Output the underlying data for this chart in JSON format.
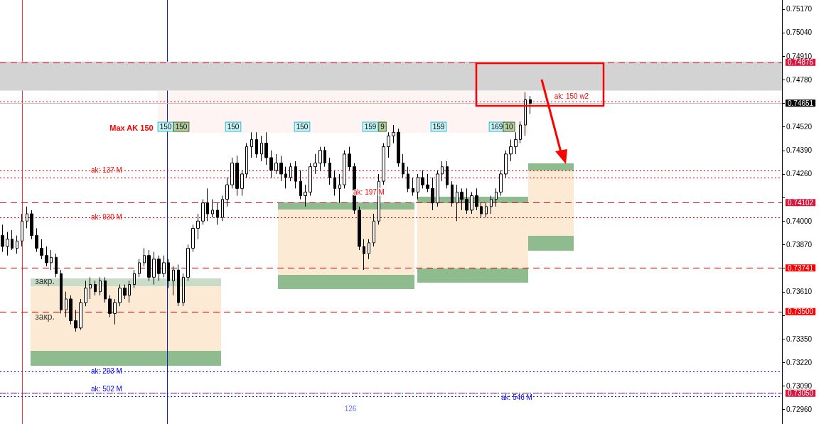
{
  "chart_data": {
    "type": "candlestick",
    "categories": [
      null,
      null,
      null,
      null,
      null,
      null,
      null,
      null,
      null,
      null,
      null,
      null,
      null,
      null,
      null,
      null,
      null,
      null,
      null,
      null,
      null,
      null,
      null,
      null,
      null,
      null,
      null,
      null,
      null,
      null,
      null,
      null,
      null,
      null,
      null,
      null,
      null,
      null,
      null,
      null,
      null,
      null,
      null,
      null,
      null,
      null,
      null,
      null,
      null,
      null,
      null,
      null,
      null,
      null,
      null,
      null,
      null,
      null,
      null,
      null,
      null,
      null,
      null,
      null,
      null,
      null,
      null,
      null,
      null,
      null,
      null,
      null,
      null,
      null,
      null,
      null,
      null,
      null,
      null,
      null,
      null,
      null,
      null,
      null,
      null,
      null,
      null,
      null,
      null,
      null,
      null,
      null,
      null,
      null,
      null,
      null,
      null,
      null,
      null,
      null,
      null,
      null,
      null,
      null,
      null,
      null,
      null,
      null,
      null,
      null,
      null,
      null,
      null,
      null,
      null,
      null,
      null,
      null,
      null,
      null,
      null,
      null,
      null,
      null,
      null,
      null,
      null,
      null,
      null,
      null,
      null,
      null,
      null,
      null,
      null,
      null,
      null,
      null,
      null,
      null,
      null,
      null,
      null,
      null,
      null,
      null,
      null,
      null,
      null,
      null,
      null,
      null,
      null,
      null,
      null,
      null,
      null,
      null,
      null,
      null
    ],
    "ohlc": [
      [
        0.7392,
        0.7398,
        0.7383,
        0.7386
      ],
      [
        0.7386,
        0.7394,
        0.7381,
        0.739
      ],
      [
        0.739,
        0.7395,
        0.7384,
        0.7385
      ],
      [
        0.7385,
        0.7392,
        0.7382,
        0.7389
      ],
      [
        0.7389,
        0.7404,
        0.7386,
        0.74
      ],
      [
        0.74,
        0.7408,
        0.7396,
        0.7404
      ],
      [
        0.7404,
        0.7406,
        0.739,
        0.7392
      ],
      [
        0.7392,
        0.7396,
        0.7383,
        0.7385
      ],
      [
        0.7385,
        0.739,
        0.7379,
        0.7381
      ],
      [
        0.7381,
        0.7386,
        0.7375,
        0.7377
      ],
      [
        0.7377,
        0.7384,
        0.7373,
        0.738
      ],
      [
        0.738,
        0.7382,
        0.7369,
        0.7371
      ],
      [
        0.7371,
        0.7373,
        0.7349,
        0.7351
      ],
      [
        0.7351,
        0.7361,
        0.7347,
        0.7357
      ],
      [
        0.7357,
        0.7359,
        0.7343,
        0.7345
      ],
      [
        0.7345,
        0.7351,
        0.7339,
        0.7341
      ],
      [
        0.7341,
        0.7357,
        0.734,
        0.7355
      ],
      [
        0.7355,
        0.7367,
        0.7353,
        0.7363
      ],
      [
        0.7363,
        0.7369,
        0.7357,
        0.7365
      ],
      [
        0.7365,
        0.7367,
        0.7359,
        0.7361
      ],
      [
        0.7361,
        0.7369,
        0.7359,
        0.7367
      ],
      [
        0.7367,
        0.7369,
        0.7355,
        0.7357
      ],
      [
        0.7357,
        0.7359,
        0.7347,
        0.7349
      ],
      [
        0.7349,
        0.7357,
        0.7343,
        0.7355
      ],
      [
        0.7355,
        0.7365,
        0.7353,
        0.7363
      ],
      [
        0.7363,
        0.7365,
        0.7357,
        0.7359
      ],
      [
        0.7359,
        0.7367,
        0.7355,
        0.7365
      ],
      [
        0.7365,
        0.7373,
        0.7363,
        0.7371
      ],
      [
        0.7371,
        0.7379,
        0.7369,
        0.7377
      ],
      [
        0.7377,
        0.7385,
        0.7375,
        0.7381
      ],
      [
        0.7381,
        0.7384,
        0.7367,
        0.7369
      ],
      [
        0.7369,
        0.7383,
        0.7365,
        0.7379
      ],
      [
        0.7379,
        0.7381,
        0.7367,
        0.7371
      ],
      [
        0.7371,
        0.7381,
        0.7369,
        0.7377
      ],
      [
        0.7377,
        0.7379,
        0.7363,
        0.7367
      ],
      [
        0.7367,
        0.7375,
        0.7359,
        0.7373
      ],
      [
        0.7373,
        0.7376,
        0.7353,
        0.7355
      ],
      [
        0.7355,
        0.7371,
        0.7353,
        0.7369
      ],
      [
        0.7369,
        0.7387,
        0.7367,
        0.7385
      ],
      [
        0.7385,
        0.7398,
        0.7383,
        0.7396
      ],
      [
        0.7396,
        0.7404,
        0.739,
        0.74
      ],
      [
        0.74,
        0.7412,
        0.7398,
        0.741
      ],
      [
        0.741,
        0.7418,
        0.74,
        0.7404
      ],
      [
        0.7404,
        0.7412,
        0.7402,
        0.7406
      ],
      [
        0.7406,
        0.741,
        0.7398,
        0.7402
      ],
      [
        0.7402,
        0.7414,
        0.74,
        0.7412
      ],
      [
        0.7412,
        0.7424,
        0.7408,
        0.742
      ],
      [
        0.742,
        0.7435,
        0.7418,
        0.7432
      ],
      [
        0.7432,
        0.7436,
        0.7414,
        0.7418
      ],
      [
        0.7418,
        0.7428,
        0.7414,
        0.7426
      ],
      [
        0.7426,
        0.7443,
        0.7424,
        0.7441
      ],
      [
        0.7441,
        0.7449,
        0.7435,
        0.7445
      ],
      [
        0.7445,
        0.7449,
        0.7435,
        0.7437
      ],
      [
        0.7437,
        0.7447,
        0.7433,
        0.7443
      ],
      [
        0.7443,
        0.7449,
        0.7431,
        0.7435
      ],
      [
        0.7435,
        0.7439,
        0.7424,
        0.7428
      ],
      [
        0.7428,
        0.7437,
        0.7426,
        0.7432
      ],
      [
        0.7432,
        0.7436,
        0.7422,
        0.7426
      ],
      [
        0.7426,
        0.743,
        0.7418,
        0.7424
      ],
      [
        0.7424,
        0.7432,
        0.7422,
        0.743
      ],
      [
        0.743,
        0.7433,
        0.7418,
        0.7422
      ],
      [
        0.7422,
        0.7428,
        0.7412,
        0.7414
      ],
      [
        0.7414,
        0.742,
        0.7408,
        0.7416
      ],
      [
        0.7416,
        0.7432,
        0.7414,
        0.743
      ],
      [
        0.743,
        0.7437,
        0.7426,
        0.7432
      ],
      [
        0.7432,
        0.7441,
        0.7428,
        0.7439
      ],
      [
        0.7439,
        0.7441,
        0.743,
        0.7432
      ],
      [
        0.7432,
        0.7435,
        0.742,
        0.7424
      ],
      [
        0.7424,
        0.7428,
        0.7414,
        0.7418
      ],
      [
        0.7418,
        0.7426,
        0.741,
        0.742
      ],
      [
        0.742,
        0.7439,
        0.7418,
        0.7437
      ],
      [
        0.7437,
        0.7441,
        0.7428,
        0.743
      ],
      [
        0.743,
        0.7432,
        0.7404,
        0.7406
      ],
      [
        0.7406,
        0.7408,
        0.7384,
        0.7386
      ],
      [
        0.7386,
        0.739,
        0.7373,
        0.7382
      ],
      [
        0.7382,
        0.739,
        0.7379,
        0.7388
      ],
      [
        0.7388,
        0.7404,
        0.7386,
        0.74
      ],
      [
        0.74,
        0.7426,
        0.7398,
        0.7422
      ],
      [
        0.7422,
        0.7443,
        0.742,
        0.7441
      ],
      [
        0.7441,
        0.7449,
        0.7435,
        0.7447
      ],
      [
        0.7447,
        0.7453,
        0.7443,
        0.7449
      ],
      [
        0.7449,
        0.7451,
        0.743,
        0.7432
      ],
      [
        0.7432,
        0.7437,
        0.7424,
        0.7426
      ],
      [
        0.7426,
        0.743,
        0.7416,
        0.7418
      ],
      [
        0.7418,
        0.7424,
        0.7414,
        0.7416
      ],
      [
        0.7416,
        0.7426,
        0.7412,
        0.7424
      ],
      [
        0.7424,
        0.7428,
        0.7418,
        0.742
      ],
      [
        0.742,
        0.7426,
        0.7416,
        0.7418
      ],
      [
        0.7418,
        0.7424,
        0.7406,
        0.741
      ],
      [
        0.741,
        0.7428,
        0.7408,
        0.7426
      ],
      [
        0.7426,
        0.7433,
        0.7422,
        0.743
      ],
      [
        0.743,
        0.7433,
        0.7418,
        0.742
      ],
      [
        0.742,
        0.7422,
        0.7408,
        0.741
      ],
      [
        0.741,
        0.742,
        0.74,
        0.7416
      ],
      [
        0.7416,
        0.7418,
        0.7406,
        0.7412
      ],
      [
        0.7412,
        0.7418,
        0.7404,
        0.7406
      ],
      [
        0.7406,
        0.7416,
        0.7404,
        0.7414
      ],
      [
        0.7414,
        0.7418,
        0.7406,
        0.7408
      ],
      [
        0.7408,
        0.741,
        0.7402,
        0.7404
      ],
      [
        0.7404,
        0.741,
        0.7402,
        0.7408
      ],
      [
        0.7408,
        0.7414,
        0.7404,
        0.7412
      ],
      [
        0.7412,
        0.7418,
        0.7408,
        0.7416
      ],
      [
        0.7416,
        0.7428,
        0.7414,
        0.7426
      ],
      [
        0.7426,
        0.7439,
        0.7424,
        0.7437
      ],
      [
        0.7437,
        0.7445,
        0.7433,
        0.7441
      ],
      [
        0.7441,
        0.7449,
        0.7437,
        0.7445
      ],
      [
        0.7445,
        0.7455,
        0.7443,
        0.7453
      ],
      [
        0.7453,
        0.7471,
        0.7447,
        0.7467
      ],
      [
        0.7467,
        0.7469,
        0.7459,
        0.7465
      ],
      null,
      null,
      null,
      null,
      null,
      null,
      null,
      null,
      null,
      null,
      null,
      null,
      null,
      null,
      null,
      null,
      null,
      null,
      null,
      null,
      null,
      null,
      null,
      null,
      null,
      null,
      null,
      null,
      null,
      null,
      null,
      null,
      null,
      null,
      null,
      null,
      null,
      null,
      null,
      null,
      null,
      null,
      null,
      null,
      null,
      null,
      null,
      null,
      null,
      null,
      null
    ],
    "ylim": [
      0.7288,
      0.7522
    ],
    "yticks": [
      {
        "value": 0.7296,
        "label": "0.72960"
      },
      {
        "value": 0.7309,
        "label": "0.73090"
      },
      {
        "value": 0.7322,
        "label": "0.73220"
      },
      {
        "value": 0.7335,
        "label": "0.73350"
      },
      {
        "value": 0.7348,
        "label": null
      },
      {
        "value": 0.7361,
        "label": "0.73610"
      },
      {
        "value": 0.7374,
        "label": null
      },
      {
        "value": 0.7387,
        "label": "0.73870"
      },
      {
        "value": 0.74,
        "label": "0.74000"
      },
      {
        "value": 0.7413,
        "label": null
      },
      {
        "value": 0.7426,
        "label": "0.74260"
      },
      {
        "value": 0.7439,
        "label": "0.74390"
      },
      {
        "value": 0.7452,
        "label": "0.74520"
      },
      {
        "value": 0.7465,
        "label": null
      },
      {
        "value": 0.7478,
        "label": "0.74780"
      },
      {
        "value": 0.7491,
        "label": "0.74910"
      },
      {
        "value": 0.7504,
        "label": "0.75040"
      },
      {
        "value": 0.7517,
        "label": "0.75170"
      }
    ],
    "grid": false,
    "bands": [
      {
        "axis": "y",
        "from": 0.7472,
        "to": 0.7488,
        "color": "#d3d3d3"
      }
    ],
    "ref_lines": [
      {
        "axis": "y",
        "value": 0.74876,
        "label": "0.74876",
        "color": "#dc143c",
        "line_style": "dashed"
      },
      {
        "axis": "y",
        "value": 0.74651,
        "label": "0.74651",
        "color": "#c0c0c0",
        "line_style": "solid"
      },
      {
        "axis": "y",
        "value": 0.74102,
        "label": "0.74102",
        "color": "#dc143c",
        "line_style": "dashed"
      },
      {
        "axis": "y",
        "value": 0.73741,
        "label": "0.73741",
        "color": "#ff0000",
        "line_style": "dashed"
      },
      {
        "axis": "y",
        "value": 0.735,
        "label": "0.73500",
        "color": "#ff0000",
        "line_style": "dashed"
      },
      {
        "axis": "y",
        "value": 0.7305,
        "label": "0.73050",
        "color": "#dc143c",
        "line_style": "dashed"
      },
      {
        "axis": "y",
        "value": 0.7428,
        "color": "#ff0000",
        "line_style": "dotted"
      },
      {
        "axis": "y",
        "value": 0.7402,
        "color": "#ff0000",
        "line_style": "dotted"
      },
      {
        "axis": "y",
        "value": 0.7424,
        "color": "#ff0000",
        "line_style": "dotted"
      },
      {
        "axis": "y",
        "value": 0.7466,
        "color": "#ff0000",
        "line_style": "dotted"
      },
      {
        "axis": "y",
        "value": 0.7317,
        "color": "#0000ff",
        "line_style": "dotted"
      },
      {
        "axis": "y",
        "value": 0.7305,
        "color": "#0000ff",
        "line_style": "dotted"
      },
      {
        "axis": "y",
        "value": 0.7303,
        "color": "#0000ff",
        "line_style": "dotted"
      }
    ],
    "annotations": [
      "Max AK 150",
      {
        "text": "150",
        "y": 0.7452
      },
      {
        "text": "150",
        "y": 0.7452
      },
      {
        "text": "150",
        "y": 0.7452
      },
      {
        "text": "150",
        "y": 0.7452
      },
      {
        "text": "159",
        "y": 0.7452
      },
      {
        "text": "9",
        "y": 0.7452
      },
      {
        "text": "159",
        "y": 0.7452
      },
      {
        "text": "169",
        "y": 0.7452
      },
      {
        "text": "10",
        "y": 0.7452
      },
      "закр.",
      "закр.",
      "126",
      "ak: 137 M",
      "ak: 930 M",
      "ak: 197 M",
      "ak: 150 w2",
      "ak: 293 M",
      "ak: 502 M",
      "ak: 546 M"
    ]
  }
}
